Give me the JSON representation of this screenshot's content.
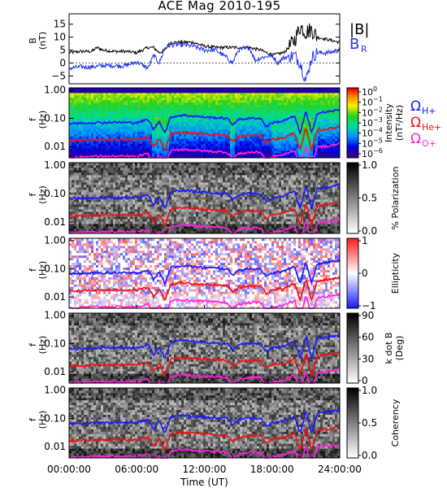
{
  "title": "ACE Mag 2010-195",
  "colors": {
    "total_field": "#000000",
    "radial_field": "#2233ee",
    "h_plus": "#1a1aff",
    "he_plus": "#ee1111",
    "o_plus": "#ff22dd"
  },
  "chart_data": [
    {
      "type": "line",
      "panel": "magnetic-field",
      "ylabel_lines": [
        "B",
        "(nT)"
      ],
      "yticks": [
        -5,
        0,
        5,
        10,
        15
      ],
      "ylim": [
        -8,
        19
      ],
      "xlim_hours": [
        0,
        24
      ],
      "grid": false,
      "legend_position": "top-right",
      "series": [
        {
          "name": "|B|",
          "color": "#000000",
          "x_hours": [
            0,
            1,
            2,
            2.5,
            3,
            4,
            5,
            6,
            7,
            7.5,
            8,
            8.5,
            9,
            10,
            11,
            12,
            13,
            14,
            15,
            16,
            17,
            17.5,
            18,
            18.5,
            19,
            19.5,
            20,
            20.5,
            21,
            21.5,
            22,
            23,
            24
          ],
          "y": [
            4,
            4.5,
            4.5,
            6,
            5,
            4.5,
            4.5,
            4,
            6,
            6,
            4,
            5,
            8,
            8,
            8,
            6.5,
            6,
            6,
            6,
            6,
            5,
            4,
            3,
            3.5,
            4,
            6,
            9,
            14,
            12,
            13,
            10,
            9,
            8
          ]
        },
        {
          "name": "B",
          "name_sub": "R",
          "color": "#2233ee",
          "x_hours": [
            0,
            1,
            2,
            3,
            4,
            5,
            6,
            7,
            7.5,
            8,
            8.5,
            9,
            10,
            11,
            12,
            13,
            14,
            14.5,
            15,
            16,
            16.5,
            17,
            18,
            18.5,
            19,
            20,
            20.5,
            21,
            21.5,
            22,
            23,
            24
          ],
          "y": [
            -2,
            -1.5,
            -1.5,
            -1,
            -1,
            -1,
            0.5,
            -2,
            3,
            0,
            6,
            7,
            7,
            6.5,
            5,
            5,
            2,
            0,
            5,
            6,
            1,
            2,
            3,
            0,
            2,
            3,
            0,
            -7,
            2,
            4,
            4,
            5
          ]
        }
      ]
    },
    {
      "type": "heatmap",
      "panel": "intensity",
      "ylabel_lines": [
        "f",
        "(Hz)"
      ],
      "ytick_labels": [
        "1.00",
        "0.10",
        "0.01"
      ],
      "yticks": [
        1.0,
        0.1,
        0.01
      ],
      "yscale": "log",
      "ylim": [
        0.004,
        1.2
      ],
      "colorbar_label": "Intensity (nT²/Hz)",
      "colorbar_ticks": [
        "10^0",
        "10^-1",
        "10^-2",
        "10^-3",
        "10^-4",
        "10^-5",
        "10^-6"
      ],
      "colorscale": "rainbow",
      "legend_position": "right"
    },
    {
      "type": "heatmap",
      "panel": "polarization",
      "ylabel_lines": [
        "f",
        "(Hz)"
      ],
      "ytick_labels": [
        "1.00",
        "0.10",
        "0.01"
      ],
      "yticks": [
        1.0,
        0.1,
        0.01
      ],
      "yscale": "log",
      "colorbar_label": "% Polarization",
      "colorbar_ticks": [
        "1.0",
        "0.5",
        "0.0"
      ],
      "colorscale": "grayscale"
    },
    {
      "type": "heatmap",
      "panel": "ellipticity",
      "ylabel_lines": [
        "f",
        "(Hz)"
      ],
      "ytick_labels": [
        "1.00",
        "0.10",
        "0.01"
      ],
      "yticks": [
        1.0,
        0.1,
        0.01
      ],
      "yscale": "log",
      "colorbar_label": "Ellipticity",
      "colorbar_ticks": [
        "1",
        "0",
        "−1"
      ],
      "colorscale": "blue-white-red"
    },
    {
      "type": "heatmap",
      "panel": "k-dot-b",
      "ylabel_lines": [
        "f",
        "(Hz)"
      ],
      "ytick_labels": [
        "1.00",
        "0.10",
        "0.01"
      ],
      "yticks": [
        1.0,
        0.1,
        0.01
      ],
      "yscale": "log",
      "colorbar_label_lines": [
        "k dot B",
        "(Deg)"
      ],
      "colorbar_ticks": [
        "90",
        "60",
        "30",
        "0"
      ],
      "colorscale": "grayscale"
    },
    {
      "type": "heatmap",
      "panel": "coherency",
      "ylabel_lines": [
        "f",
        "(Hz)"
      ],
      "ytick_labels": [
        "1.00",
        "0.10",
        "0.01"
      ],
      "yticks": [
        1.0,
        0.1,
        0.01
      ],
      "yscale": "log",
      "colorbar_label": "Coherency",
      "colorbar_ticks": [
        "1.0",
        "0.5",
        "0.0"
      ],
      "colorscale": "grayscale",
      "xlabel": "Time (UT)",
      "xtick_labels": [
        "00:00:00",
        "06:00:00",
        "12:00:00",
        "18:00:00",
        "24:00:00"
      ],
      "xticks_hours": [
        0,
        6,
        12,
        18,
        24
      ]
    },
    {
      "type": "line",
      "panel": "gyrofrequency-overlays",
      "yscale": "log",
      "xlim_hours": [
        0,
        24
      ],
      "series": [
        {
          "name": "Ω",
          "name_sub": "H+",
          "color": "#1a1aff",
          "x_hours": [
            0,
            2,
            4,
            6,
            7,
            7.5,
            8,
            8.5,
            9,
            10,
            12,
            14,
            14.5,
            15,
            16,
            17,
            17.5,
            18,
            19,
            20,
            20.5,
            21,
            21.5,
            22,
            23,
            24
          ],
          "y": [
            0.065,
            0.07,
            0.072,
            0.07,
            0.09,
            0.04,
            0.08,
            0.03,
            0.11,
            0.13,
            0.11,
            0.1,
            0.06,
            0.09,
            0.1,
            0.1,
            0.05,
            0.07,
            0.08,
            0.12,
            0.03,
            0.18,
            0.03,
            0.15,
            0.17,
            0.2
          ]
        },
        {
          "name": "Ω",
          "name_sub": "He+",
          "color": "#ee1111",
          "x_hours": [
            0,
            2,
            4,
            6,
            7,
            7.5,
            8,
            8.5,
            9,
            10,
            12,
            14,
            14.5,
            15,
            16,
            17,
            17.5,
            18,
            19,
            20,
            20.5,
            21,
            21.5,
            22,
            23,
            24
          ],
          "y": [
            0.016,
            0.017,
            0.018,
            0.0175,
            0.022,
            0.01,
            0.02,
            0.0075,
            0.028,
            0.032,
            0.028,
            0.025,
            0.015,
            0.022,
            0.025,
            0.025,
            0.013,
            0.018,
            0.02,
            0.03,
            0.0075,
            0.045,
            0.0075,
            0.038,
            0.042,
            0.05
          ]
        },
        {
          "name": "Ω",
          "name_sub": "O+",
          "color": "#ff22dd",
          "x_hours": [
            0,
            2,
            4,
            6,
            7,
            7.5,
            8,
            8.5,
            9,
            10,
            12,
            14,
            14.5,
            15,
            16,
            17,
            17.5,
            18,
            19,
            20,
            20.5,
            21,
            21.5,
            22,
            23,
            24
          ],
          "y": [
            0.004,
            0.0045,
            0.0045,
            0.0045,
            0.0055,
            0.0025,
            0.005,
            0.002,
            0.007,
            0.008,
            0.007,
            0.0063,
            0.0038,
            0.0055,
            0.0063,
            0.0063,
            0.0032,
            0.0045,
            0.005,
            0.0075,
            0.002,
            0.011,
            0.002,
            0.0095,
            0.0105,
            0.0125
          ]
        }
      ]
    }
  ]
}
